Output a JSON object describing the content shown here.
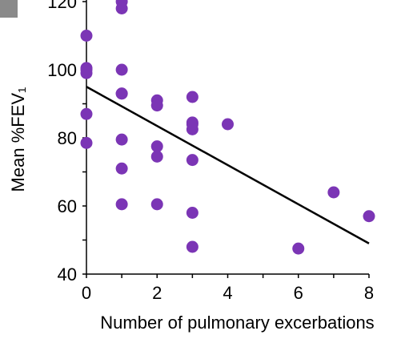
{
  "chart_data": {
    "type": "scatter",
    "title": "",
    "xlabel": "Number of pulmonary excerbations",
    "ylabel": "Mean %FEV₁",
    "xlim": [
      0,
      8
    ],
    "ylim": [
      40,
      120
    ],
    "x_ticks": [
      "0",
      "2",
      "4",
      "6",
      "8"
    ],
    "y_ticks": [
      "40",
      "60",
      "80",
      "100",
      "120"
    ],
    "grid": false,
    "legend": "none",
    "colors": {
      "points": "#7b35b5",
      "trendline": "#000000",
      "axes": "#000000",
      "corner_mark": "#8a8a8a"
    },
    "series": [
      {
        "x": [
          0,
          0,
          0,
          0,
          0,
          0,
          1,
          1,
          1,
          1,
          1,
          1,
          1,
          1,
          2,
          2,
          2,
          2,
          2,
          3,
          3,
          3,
          3,
          3,
          3,
          3,
          4,
          6,
          7,
          8
        ],
        "y": [
          110,
          100.5,
          99,
          87,
          78.5,
          100,
          120,
          118,
          100,
          93,
          79.5,
          71,
          60.5,
          93,
          91,
          89.5,
          77.5,
          74.5,
          60.5,
          92,
          84.5,
          82.5,
          73.5,
          58,
          48,
          84,
          84,
          47.5,
          64,
          57
        ]
      }
    ],
    "trendline": {
      "x": [
        0,
        8
      ],
      "y": [
        95,
        49
      ]
    }
  }
}
